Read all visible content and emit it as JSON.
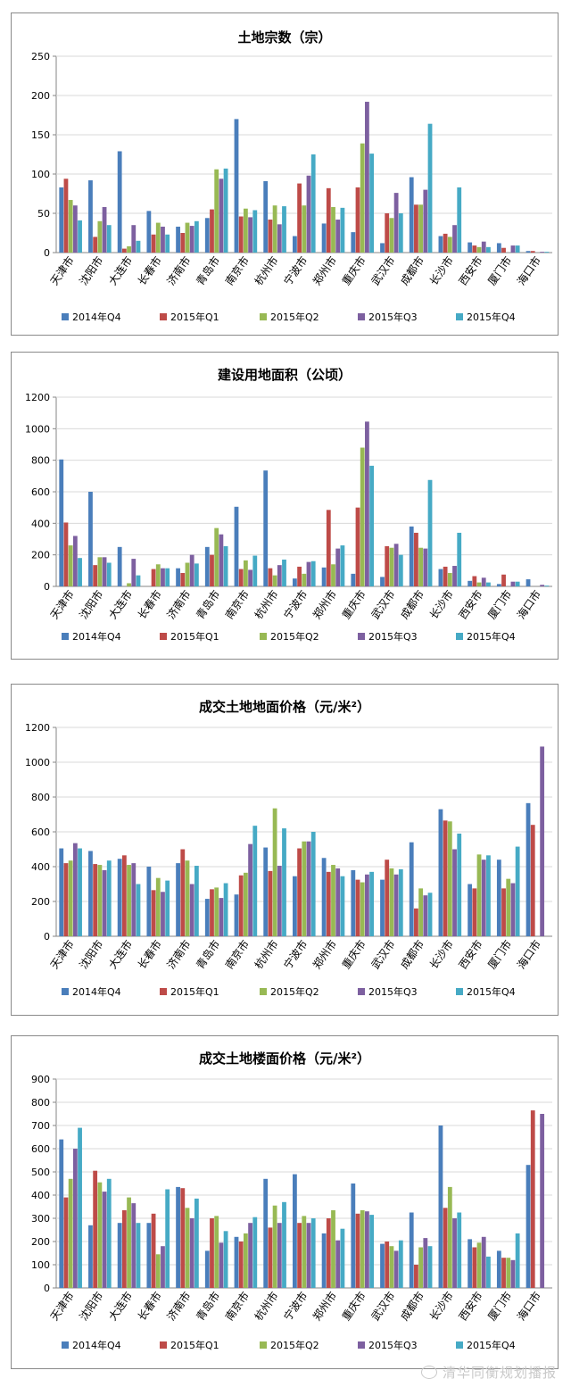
{
  "colors": [
    "#4a7ebb",
    "#be4b48",
    "#98b954",
    "#7d60a0",
    "#46aac5"
  ],
  "watermark": "清华同衡规划播报",
  "chart_data": [
    {
      "type": "bar",
      "title": "土地宗数（宗）",
      "ylim": [
        0,
        250
      ],
      "ytick_step": 50,
      "categories": [
        "天津市",
        "沈阳市",
        "大连市",
        "长春市",
        "济南市",
        "青岛市",
        "南京市",
        "杭州市",
        "宁波市",
        "郑州市",
        "重庆市",
        "武汉市",
        "成都市",
        "长沙市",
        "西安市",
        "厦门市",
        "海口市"
      ],
      "series": [
        {
          "name": "2014年Q4",
          "values": [
            83,
            92,
            129,
            53,
            33,
            44,
            170,
            91,
            21,
            37,
            26,
            12,
            96,
            21,
            13,
            12,
            2
          ]
        },
        {
          "name": "2015年Q1",
          "values": [
            94,
            20,
            5,
            23,
            25,
            55,
            46,
            42,
            88,
            82,
            83,
            50,
            61,
            24,
            9,
            6,
            2
          ]
        },
        {
          "name": "2015年Q2",
          "values": [
            67,
            40,
            8,
            38,
            38,
            106,
            56,
            60,
            60,
            58,
            139,
            44,
            61,
            20,
            7,
            0,
            0
          ]
        },
        {
          "name": "2015年Q3",
          "values": [
            60,
            58,
            35,
            33,
            34,
            94,
            45,
            36,
            98,
            42,
            192,
            76,
            80,
            35,
            14,
            9,
            1
          ]
        },
        {
          "name": "2015年Q4",
          "values": [
            41,
            35,
            15,
            23,
            40,
            107,
            54,
            59,
            125,
            57,
            126,
            50,
            164,
            83,
            7,
            9,
            1
          ]
        }
      ]
    },
    {
      "type": "bar",
      "title": "建设用地面积（公顷）",
      "ylim": [
        0,
        1200
      ],
      "ytick_step": 200,
      "categories": [
        "天津市",
        "沈阳市",
        "大连市",
        "长春市",
        "济南市",
        "青岛市",
        "南京市",
        "杭州市",
        "宁波市",
        "郑州市",
        "重庆市",
        "武汉市",
        "成都市",
        "长沙市",
        "西安市",
        "厦门市",
        "海口市"
      ],
      "series": [
        {
          "name": "2014年Q4",
          "values": [
            805,
            600,
            250,
            0,
            115,
            250,
            505,
            735,
            50,
            120,
            80,
            60,
            380,
            110,
            35,
            15,
            45
          ]
        },
        {
          "name": "2015年Q1",
          "values": [
            405,
            135,
            0,
            110,
            85,
            200,
            110,
            115,
            125,
            485,
            500,
            255,
            340,
            125,
            65,
            75,
            0
          ]
        },
        {
          "name": "2015年Q2",
          "values": [
            260,
            185,
            20,
            140,
            150,
            370,
            165,
            70,
            80,
            140,
            880,
            245,
            245,
            85,
            25,
            0,
            0
          ]
        },
        {
          "name": "2015年Q3",
          "values": [
            320,
            185,
            175,
            115,
            200,
            330,
            105,
            135,
            155,
            240,
            1045,
            270,
            240,
            130,
            55,
            30,
            10
          ]
        },
        {
          "name": "2015年Q4",
          "values": [
            180,
            150,
            70,
            115,
            145,
            255,
            195,
            170,
            160,
            260,
            765,
            200,
            675,
            340,
            25,
            30,
            5
          ]
        }
      ]
    },
    {
      "type": "bar",
      "title": "成交土地地面价格（元/米²）",
      "ylim": [
        0,
        1200
      ],
      "ytick_step": 200,
      "categories": [
        "天津市",
        "沈阳市",
        "大连市",
        "长春市",
        "济南市",
        "青岛市",
        "南京市",
        "杭州市",
        "宁波市",
        "郑州市",
        "重庆市",
        "武汉市",
        "成都市",
        "长沙市",
        "西安市",
        "厦门市",
        "海口市"
      ],
      "series": [
        {
          "name": "2014年Q4",
          "values": [
            505,
            490,
            445,
            400,
            420,
            215,
            240,
            510,
            345,
            450,
            380,
            325,
            540,
            730,
            300,
            440,
            765
          ]
        },
        {
          "name": "2015年Q1",
          "values": [
            420,
            415,
            465,
            265,
            500,
            270,
            350,
            375,
            505,
            370,
            325,
            440,
            160,
            665,
            275,
            275,
            640
          ]
        },
        {
          "name": "2015年Q2",
          "values": [
            435,
            410,
            410,
            335,
            435,
            280,
            365,
            735,
            545,
            410,
            310,
            390,
            275,
            660,
            470,
            330,
            0
          ]
        },
        {
          "name": "2015年Q3",
          "values": [
            535,
            380,
            420,
            255,
            300,
            220,
            530,
            405,
            545,
            390,
            355,
            355,
            235,
            500,
            440,
            305,
            1090
          ]
        },
        {
          "name": "2015年Q4",
          "values": [
            505,
            435,
            300,
            320,
            405,
            305,
            635,
            620,
            600,
            345,
            370,
            385,
            250,
            590,
            465,
            515,
            0
          ]
        }
      ]
    },
    {
      "type": "bar",
      "title": "成交土地楼面价格（元/米²）",
      "ylim": [
        0,
        900
      ],
      "ytick_step": 100,
      "categories": [
        "天津市",
        "沈阳市",
        "大连市",
        "长春市",
        "济南市",
        "青岛市",
        "南京市",
        "杭州市",
        "宁波市",
        "郑州市",
        "重庆市",
        "武汉市",
        "成都市",
        "长沙市",
        "西安市",
        "厦门市",
        "海口市"
      ],
      "series": [
        {
          "name": "2014年Q4",
          "values": [
            640,
            270,
            280,
            280,
            435,
            160,
            220,
            470,
            490,
            235,
            450,
            190,
            325,
            700,
            210,
            160,
            530
          ]
        },
        {
          "name": "2015年Q1",
          "values": [
            390,
            505,
            335,
            320,
            430,
            300,
            200,
            260,
            280,
            300,
            320,
            200,
            100,
            345,
            175,
            130,
            765
          ]
        },
        {
          "name": "2015年Q2",
          "values": [
            470,
            455,
            390,
            145,
            345,
            310,
            235,
            355,
            310,
            335,
            335,
            180,
            175,
            435,
            195,
            130,
            0
          ]
        },
        {
          "name": "2015年Q3",
          "values": [
            600,
            415,
            365,
            180,
            300,
            195,
            280,
            280,
            280,
            205,
            330,
            160,
            215,
            300,
            220,
            120,
            750
          ]
        },
        {
          "name": "2015年Q4",
          "values": [
            690,
            470,
            280,
            425,
            385,
            245,
            305,
            370,
            300,
            255,
            315,
            205,
            180,
            325,
            135,
            235,
            0
          ]
        }
      ]
    }
  ]
}
